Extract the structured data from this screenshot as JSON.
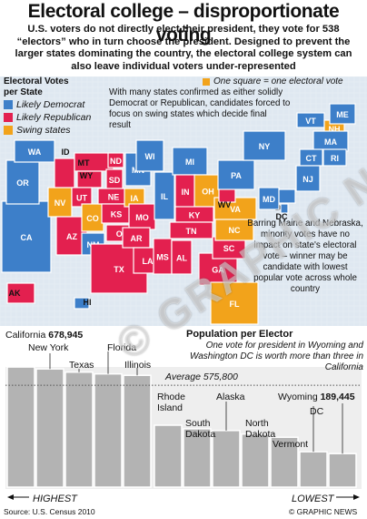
{
  "header": {
    "title": "Electoral college – disproportionate voting",
    "intro": "U.S. voters do not directly elect their president, they vote for 538 “electors” who in turn choose the president. Designed to prevent the larger states dominating the country, the electoral college system can also leave individual voters under-represented"
  },
  "map": {
    "legend_title_line1": "Electoral Votes",
    "legend_title_line2": "per State",
    "legend": [
      {
        "label": "Likely Democrat",
        "color": "#3d7fc9"
      },
      {
        "label": "Likely Republican",
        "color": "#e3204f"
      },
      {
        "label": "Swing states",
        "color": "#f2a31b"
      }
    ],
    "scale_note": "One square = one electoral vote",
    "note": "With many states confirmed as either solidly Democrat or Republican, candidates forced to focus on swing states which decide final result",
    "side_note": "Barring Maine and Nebraska, minority votes have no impact on state's electoral vote – winner may be candidate with lowest popular vote across whole country",
    "states": [
      {
        "abbr": "CA",
        "party": "D"
      },
      {
        "abbr": "OR",
        "party": "D"
      },
      {
        "abbr": "WA",
        "party": "D"
      },
      {
        "abbr": "NV",
        "party": "S"
      },
      {
        "abbr": "ID",
        "party": "R"
      },
      {
        "abbr": "MT",
        "party": "R"
      },
      {
        "abbr": "WY",
        "party": "R"
      },
      {
        "abbr": "UT",
        "party": "R"
      },
      {
        "abbr": "AZ",
        "party": "R"
      },
      {
        "abbr": "CO",
        "party": "S"
      },
      {
        "abbr": "NM",
        "party": "D"
      },
      {
        "abbr": "ND",
        "party": "R"
      },
      {
        "abbr": "SD",
        "party": "R"
      },
      {
        "abbr": "NE",
        "party": "R"
      },
      {
        "abbr": "KS",
        "party": "R"
      },
      {
        "abbr": "OK",
        "party": "R"
      },
      {
        "abbr": "TX",
        "party": "R"
      },
      {
        "abbr": "MN",
        "party": "D"
      },
      {
        "abbr": "IA",
        "party": "S"
      },
      {
        "abbr": "MO",
        "party": "R"
      },
      {
        "abbr": "AR",
        "party": "R"
      },
      {
        "abbr": "LA",
        "party": "R"
      },
      {
        "abbr": "WI",
        "party": "D"
      },
      {
        "abbr": "IL",
        "party": "D"
      },
      {
        "abbr": "MI",
        "party": "D"
      },
      {
        "abbr": "IN",
        "party": "R"
      },
      {
        "abbr": "OH",
        "party": "S"
      },
      {
        "abbr": "KY",
        "party": "R"
      },
      {
        "abbr": "TN",
        "party": "R"
      },
      {
        "abbr": "MS",
        "party": "R"
      },
      {
        "abbr": "AL",
        "party": "R"
      },
      {
        "abbr": "GA",
        "party": "R"
      },
      {
        "abbr": "FL",
        "party": "S"
      },
      {
        "abbr": "SC",
        "party": "R"
      },
      {
        "abbr": "NC",
        "party": "S"
      },
      {
        "abbr": "VA",
        "party": "S"
      },
      {
        "abbr": "WV",
        "party": "R"
      },
      {
        "abbr": "PA",
        "party": "D"
      },
      {
        "abbr": "NY",
        "party": "D"
      },
      {
        "abbr": "VT",
        "party": "D"
      },
      {
        "abbr": "NH",
        "party": "S"
      },
      {
        "abbr": "ME",
        "party": "D"
      },
      {
        "abbr": "MA",
        "party": "D"
      },
      {
        "abbr": "CT",
        "party": "D"
      },
      {
        "abbr": "RI",
        "party": "D"
      },
      {
        "abbr": "NJ",
        "party": "D"
      },
      {
        "abbr": "DE",
        "party": "D"
      },
      {
        "abbr": "MD",
        "party": "D"
      },
      {
        "abbr": "DC",
        "party": "D"
      },
      {
        "abbr": "AK",
        "party": "R"
      },
      {
        "abbr": "HI",
        "party": "D"
      }
    ]
  },
  "chart_data": {
    "type": "bar",
    "title": "Population per Elector",
    "note": "One vote for president in Wyoming and Washington DC is worth more than three in California",
    "categories": [
      "California",
      "New York",
      "Texas",
      "Florida",
      "Illinois",
      "Rhode Island",
      "South Dakota",
      "Alaska",
      "North Dakota",
      "Vermont",
      "DC",
      "Wyoming"
    ],
    "values": [
      678945,
      668000,
      650000,
      640000,
      632000,
      350000,
      330000,
      320000,
      300000,
      282000,
      200000,
      189445
    ],
    "value_labels": {
      "California": "678,945",
      "Wyoming": "189,445"
    },
    "average": 575800,
    "average_label": "Average 575,800",
    "x_start_label": "HIGHEST",
    "x_end_label": "LOWEST",
    "ylim": [
      0,
      700000
    ],
    "bar_color": "#b3b3b3"
  },
  "footer": {
    "source": "Source: U.S. Census 2010",
    "credit": "© GRAPHIC NEWS",
    "watermark": "© GRAPHIC NEWS"
  }
}
